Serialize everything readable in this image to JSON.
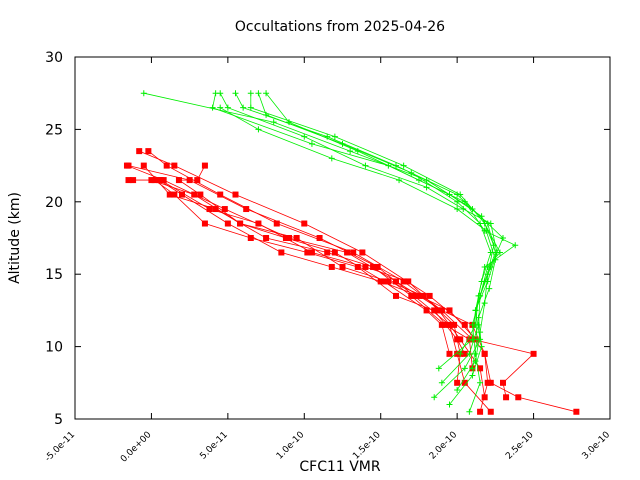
{
  "chart_data": {
    "type": "line",
    "title": "Occultations from 2025-04-26",
    "xlabel": "CFC11 VMR",
    "ylabel": "Altitude (km)",
    "xlim": [
      -5e-11,
      3e-10
    ],
    "ylim": [
      5,
      30
    ],
    "grid": false,
    "legend": "none",
    "x_tick_labels": [
      "-5.0e-11",
      "0.0e+00",
      "5.0e-11",
      "1.0e-10",
      "1.5e-10",
      "2.0e-10",
      "2.5e-10",
      "3.0e-10"
    ],
    "x_tick_values": [
      -5e-11,
      0,
      5e-11,
      1e-10,
      1.5e-10,
      2e-10,
      2.5e-10,
      3e-10
    ],
    "y_tick_labels": [
      "5",
      "10",
      "15",
      "20",
      "25",
      "30"
    ],
    "y_tick_values": [
      5,
      10,
      15,
      20,
      25,
      30
    ],
    "series": [
      {
        "color": "#ff0000",
        "marker": "square",
        "profiles": [
          [
            [
              2.78e-10,
              5.5
            ],
            [
              2.4e-10,
              6.5
            ],
            [
              2.22e-10,
              7.5
            ],
            [
              2.18e-10,
              9.5
            ],
            [
              2.05e-10,
              11.5
            ],
            [
              1.82e-10,
              13.5
            ],
            [
              1.38e-10,
              16.5
            ],
            [
              1e-10,
              18.5
            ],
            [
              5.5e-11,
              20.5
            ],
            [
              1.5e-11,
              22.5
            ],
            [
              -8e-12,
              23.5
            ]
          ],
          [
            [
              2.32e-10,
              6.5
            ],
            [
              2.3e-10,
              7.5
            ],
            [
              2.5e-10,
              9.5
            ],
            [
              2.1e-10,
              10.5
            ],
            [
              1.9e-10,
              12.5
            ],
            [
              1.65e-10,
              14.5
            ],
            [
              1.32e-10,
              16.5
            ],
            [
              8.2e-11,
              18.5
            ],
            [
              4.5e-11,
              20.5
            ],
            [
              1e-11,
              22.5
            ],
            [
              -2e-12,
              23.5
            ]
          ],
          [
            [
              2.22e-10,
              5.5
            ],
            [
              2.05e-10,
              7.5
            ],
            [
              2e-10,
              9.5
            ],
            [
              1.95e-10,
              11.5
            ],
            [
              1.72e-10,
              13.5
            ],
            [
              1.48e-10,
              15.5
            ],
            [
              1.1e-10,
              17.5
            ],
            [
              6.2e-11,
              19.5
            ],
            [
              2.5e-11,
              21.5
            ],
            [
              -1.5e-11,
              22.5
            ]
          ],
          [
            [
              2.15e-10,
              5.5
            ],
            [
              2.2e-10,
              7.5
            ],
            [
              2.18e-10,
              9.5
            ],
            [
              2.1e-10,
              11.5
            ],
            [
              1.9e-10,
              12.5
            ],
            [
              1.6e-10,
              14.5
            ],
            [
              1.28e-10,
              16.5
            ],
            [
              9e-11,
              17.5
            ],
            [
              4.8e-11,
              19.5
            ],
            [
              8e-12,
              21.5
            ],
            [
              -1.6e-11,
              22.5
            ]
          ],
          [
            [
              2.18e-10,
              6.5
            ],
            [
              2.15e-10,
              8.5
            ],
            [
              2.02e-10,
              10.5
            ],
            [
              1.88e-10,
              12.5
            ],
            [
              1.68e-10,
              14.5
            ],
            [
              1.4e-10,
              15.5
            ],
            [
              1.05e-10,
              16.5
            ],
            [
              7e-11,
              18.5
            ],
            [
              3.8e-11,
              19.5
            ],
            [
              6e-12,
              21.5
            ],
            [
              -1.2e-11,
              21.5
            ]
          ],
          [
            [
              2e-10,
              7.5
            ],
            [
              2.02e-10,
              9.5
            ],
            [
              1.98e-10,
              11.5
            ],
            [
              1.78e-10,
              13.5
            ],
            [
              1.55e-10,
              14.5
            ],
            [
              1.25e-10,
              15.5
            ],
            [
              9.5e-11,
              17.5
            ],
            [
              5.8e-11,
              18.5
            ],
            [
              2.8e-11,
              20.5
            ],
            [
              0,
              21.5
            ]
          ],
          [
            [
              2.1e-10,
              8.5
            ],
            [
              2.08e-10,
              10.5
            ],
            [
              1.92e-10,
              11.5
            ],
            [
              1.7e-10,
              13.5
            ],
            [
              1.45e-10,
              15.5
            ],
            [
              1.15e-10,
              16.5
            ],
            [
              7.5e-11,
              17.5
            ],
            [
              4.2e-11,
              19.5
            ],
            [
              1.2e-11,
              20.5
            ],
            [
              -5e-12,
              22.5
            ]
          ],
          [
            [
              2.05e-10,
              9.5
            ],
            [
              2e-10,
              10.5
            ],
            [
              1.85e-10,
              12.5
            ],
            [
              1.6e-10,
              13.5
            ],
            [
              1.35e-10,
              15.5
            ],
            [
              1.02e-10,
              16.5
            ],
            [
              6.5e-11,
              17.5
            ],
            [
              3.5e-11,
              18.5
            ],
            [
              1.5e-11,
              20.5
            ],
            [
              2e-12,
              21.5
            ]
          ],
          [
            [
              2.12e-10,
              10.5
            ],
            [
              1.95e-10,
              12.5
            ],
            [
              1.75e-10,
              13.5
            ],
            [
              1.5e-10,
              14.5
            ],
            [
              1.18e-10,
              15.5
            ],
            [
              8.5e-11,
              16.5
            ],
            [
              5e-11,
              18.5
            ],
            [
              2e-11,
              20.5
            ],
            [
              5e-12,
              21.5
            ],
            [
              -1.5e-11,
              21.5
            ]
          ],
          [
            [
              1.95e-10,
              9.5
            ],
            [
              1.9e-10,
              11.5
            ],
            [
              1.8e-10,
              12.5
            ],
            [
              1.52e-10,
              14.5
            ],
            [
              1.2e-10,
              16.5
            ],
            [
              8.8e-11,
              17.5
            ],
            [
              5.8e-11,
              18.5
            ],
            [
              3.2e-11,
              20.5
            ],
            [
              1.8e-11,
              21.5
            ],
            [
              3e-11,
              21.5
            ],
            [
              3.5e-11,
              22.5
            ]
          ]
        ]
      },
      {
        "color": "#00ee00",
        "marker": "plus",
        "profiles": [
          [
            [
              2.08e-10,
              5.5
            ],
            [
              2.15e-10,
              7.5
            ],
            [
              2.12e-10,
              9.5
            ],
            [
              2.1e-10,
              11.5
            ],
            [
              2.15e-10,
              13.5
            ],
            [
              2.22e-10,
              15.5
            ],
            [
              2.3e-10,
              17.5
            ],
            [
              2.1e-10,
              19.5
            ],
            [
              1.8e-10,
              21.5
            ],
            [
              1.3e-10,
              23.5
            ],
            [
              8e-11,
              25.5
            ],
            [
              -5e-12,
              27.5
            ]
          ],
          [
            [
              1.85e-10,
              6.5
            ],
            [
              2.05e-10,
              8.5
            ],
            [
              2.15e-10,
              10.5
            ],
            [
              2.12e-10,
              12.5
            ],
            [
              2.18e-10,
              14.5
            ],
            [
              2.25e-10,
              16.5
            ],
            [
              2.2e-10,
              18.5
            ],
            [
              2e-10,
              20.5
            ],
            [
              1.6e-10,
              22.5
            ],
            [
              1.15e-10,
              24.5
            ],
            [
              6e-11,
              26.5
            ],
            [
              5.5e-11,
              27.5
            ]
          ],
          [
            [
              1.9e-10,
              7.5
            ],
            [
              2.08e-10,
              9.5
            ],
            [
              2.14e-10,
              11.5
            ],
            [
              2.15e-10,
              13.5
            ],
            [
              2.2e-10,
              15.5
            ],
            [
              2.28e-10,
              16.5
            ],
            [
              2.18e-10,
              18.5
            ],
            [
              2.02e-10,
              20.5
            ],
            [
              1.65e-10,
              22.5
            ],
            [
              1.2e-10,
              24.5
            ],
            [
              6.5e-11,
              26.5
            ],
            [
              6.5e-11,
              27.5
            ]
          ],
          [
            [
              1.88e-10,
              8.5
            ],
            [
              2.1e-10,
              10.5
            ],
            [
              2.12e-10,
              12.5
            ],
            [
              2.16e-10,
              14.5
            ],
            [
              2.22e-10,
              16.5
            ],
            [
              2.15e-10,
              18.5
            ],
            [
              2e-10,
              20.0
            ],
            [
              1.7e-10,
              22.0
            ],
            [
              1.25e-10,
              24.0
            ],
            [
              7.5e-11,
              26.0
            ],
            [
              7e-11,
              27.5
            ]
          ],
          [
            [
              2.02e-10,
              9.5
            ],
            [
              2.12e-10,
              11.5
            ],
            [
              2.14e-10,
              13.5
            ],
            [
              2.18e-10,
              15.5
            ],
            [
              2.38e-10,
              17.0
            ],
            [
              2.18e-10,
              18.0
            ],
            [
              2.05e-10,
              20.0
            ],
            [
              1.75e-10,
              21.5
            ],
            [
              1.35e-10,
              23.5
            ],
            [
              9e-11,
              25.5
            ],
            [
              7.5e-11,
              27.5
            ]
          ],
          [
            [
              2.1e-10,
              8.5
            ],
            [
              2.13e-10,
              10.5
            ],
            [
              2.12e-10,
              12.5
            ],
            [
              2.2e-10,
              14.5
            ],
            [
              2.26e-10,
              16.5
            ],
            [
              2.22e-10,
              18.5
            ],
            [
              2.04e-10,
              19.5
            ],
            [
              1.8e-10,
              21.0
            ],
            [
              1.4e-10,
              22.5
            ],
            [
              1e-10,
              24.5
            ],
            [
              5e-11,
              26.5
            ],
            [
              4.5e-11,
              27.5
            ]
          ],
          [
            [
              2e-10,
              7.0
            ],
            [
              2.12e-10,
              9.0
            ],
            [
              2.15e-10,
              11.0
            ],
            [
              2.18e-10,
              13.0
            ],
            [
              2.2e-10,
              15.0
            ],
            [
              2.24e-10,
              17.0
            ],
            [
              2.16e-10,
              19.0
            ],
            [
              1.95e-10,
              20.5
            ],
            [
              1.55e-10,
              22.5
            ],
            [
              1.05e-10,
              24.0
            ],
            [
              4e-11,
              26.5
            ],
            [
              4.2e-11,
              27.5
            ]
          ],
          [
            [
              1.95e-10,
              6.0
            ],
            [
              2.1e-10,
              8.0
            ],
            [
              2.16e-10,
              10.0
            ],
            [
              2.14e-10,
              12.0
            ],
            [
              2.21e-10,
              14.0
            ],
            [
              2.25e-10,
              16.0
            ],
            [
              2.19e-10,
              18.0
            ],
            [
              2e-10,
              19.5
            ],
            [
              1.62e-10,
              21.5
            ],
            [
              1.18e-10,
              23.0
            ],
            [
              7e-11,
              25.0
            ],
            [
              4.5e-11,
              26.5
            ]
          ]
        ]
      }
    ]
  }
}
